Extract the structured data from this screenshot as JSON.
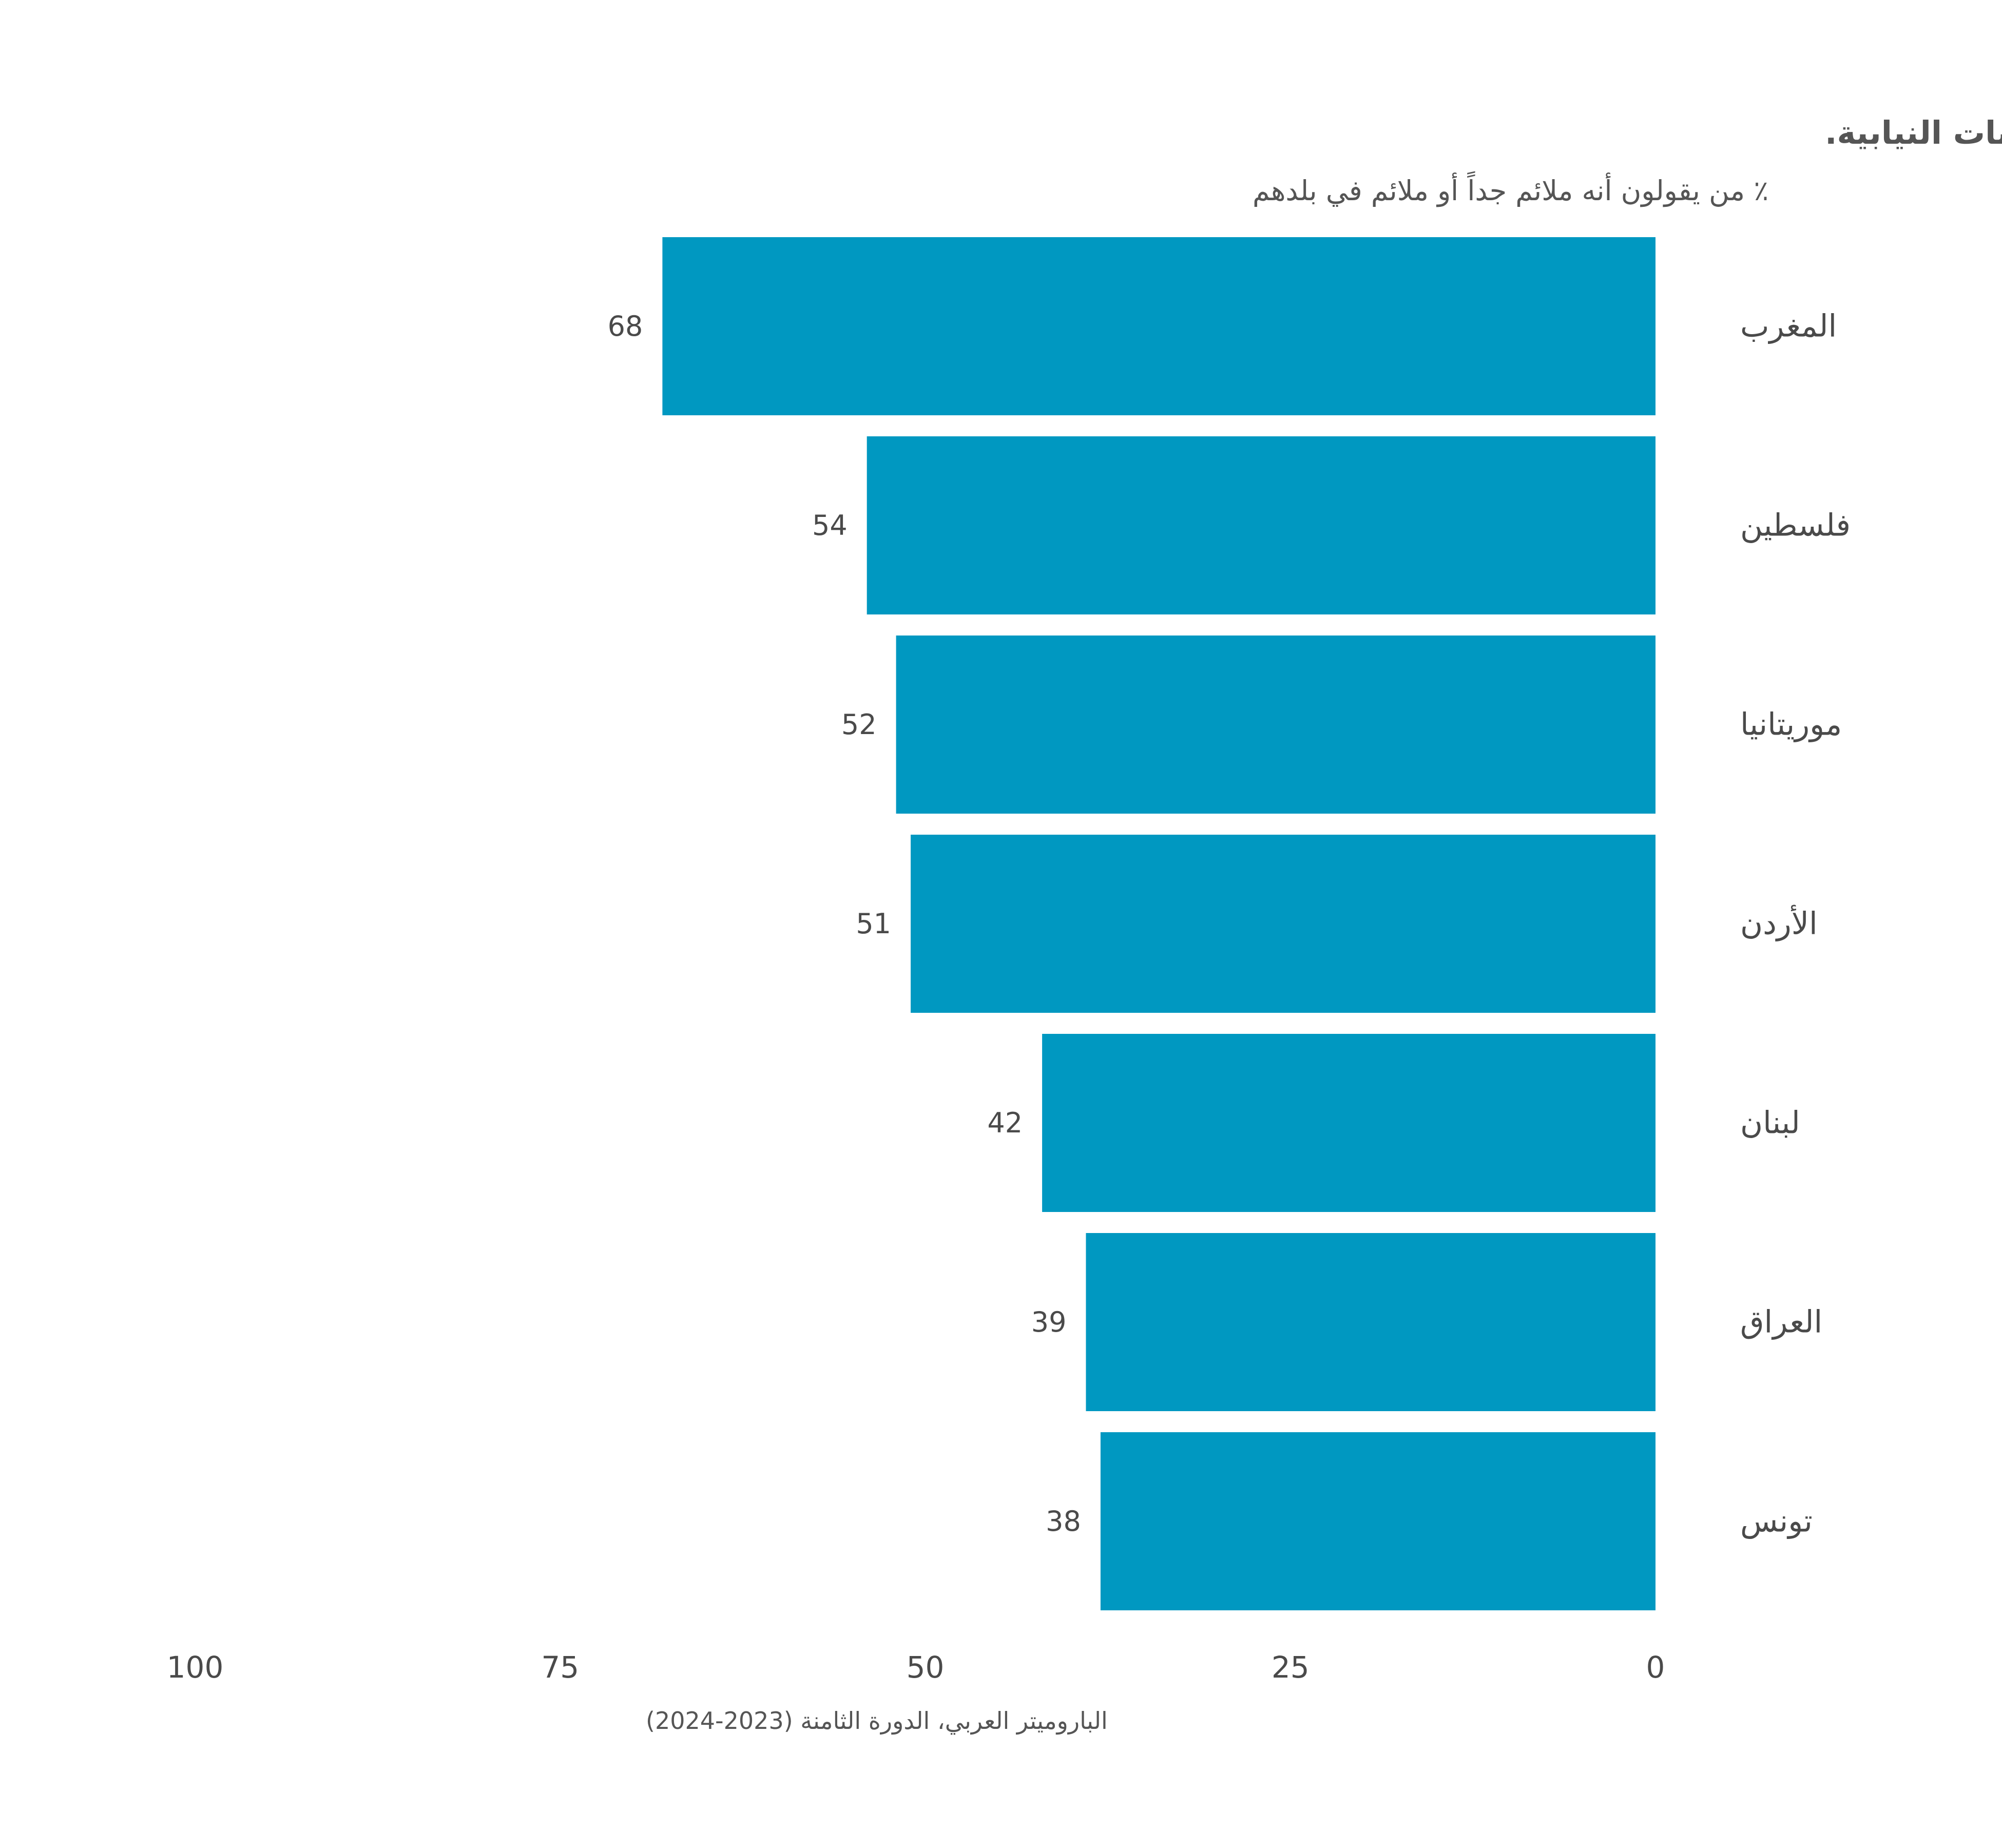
{
  "chart_data": {
    "type": "bar",
    "orientation": "horizontal",
    "x_direction": "reversed",
    "title": "نظام برلماني حيث الأحزاب القومية واليسارية واليمينية والإسلامية تتنافس من خلال الانتخابات النيابية.",
    "subtitle": "٪ من يقولون أنه ملائم جداً أو ملائم في بلدهم",
    "categories": [
      "المغرب",
      "فلسطين",
      "موريتانيا",
      "الأردن",
      "لبنان",
      "العراق",
      "تونس"
    ],
    "values": [
      68,
      54,
      52,
      51,
      42,
      39,
      38
    ],
    "value_labels": [
      "68",
      "54",
      "52",
      "51",
      "42",
      "39",
      "38"
    ],
    "xlim": [
      0,
      100
    ],
    "x_ticks": [
      0,
      25,
      50,
      75,
      100
    ],
    "x_tick_labels": [
      "0",
      "25",
      "50",
      "75",
      "100"
    ],
    "xlabel": "",
    "ylabel": "",
    "grid": false,
    "legend": "none",
    "bar_color": "#0098c1",
    "source": "الباروميتر العربي، الدورة الثامنة (2023-2024)"
  }
}
